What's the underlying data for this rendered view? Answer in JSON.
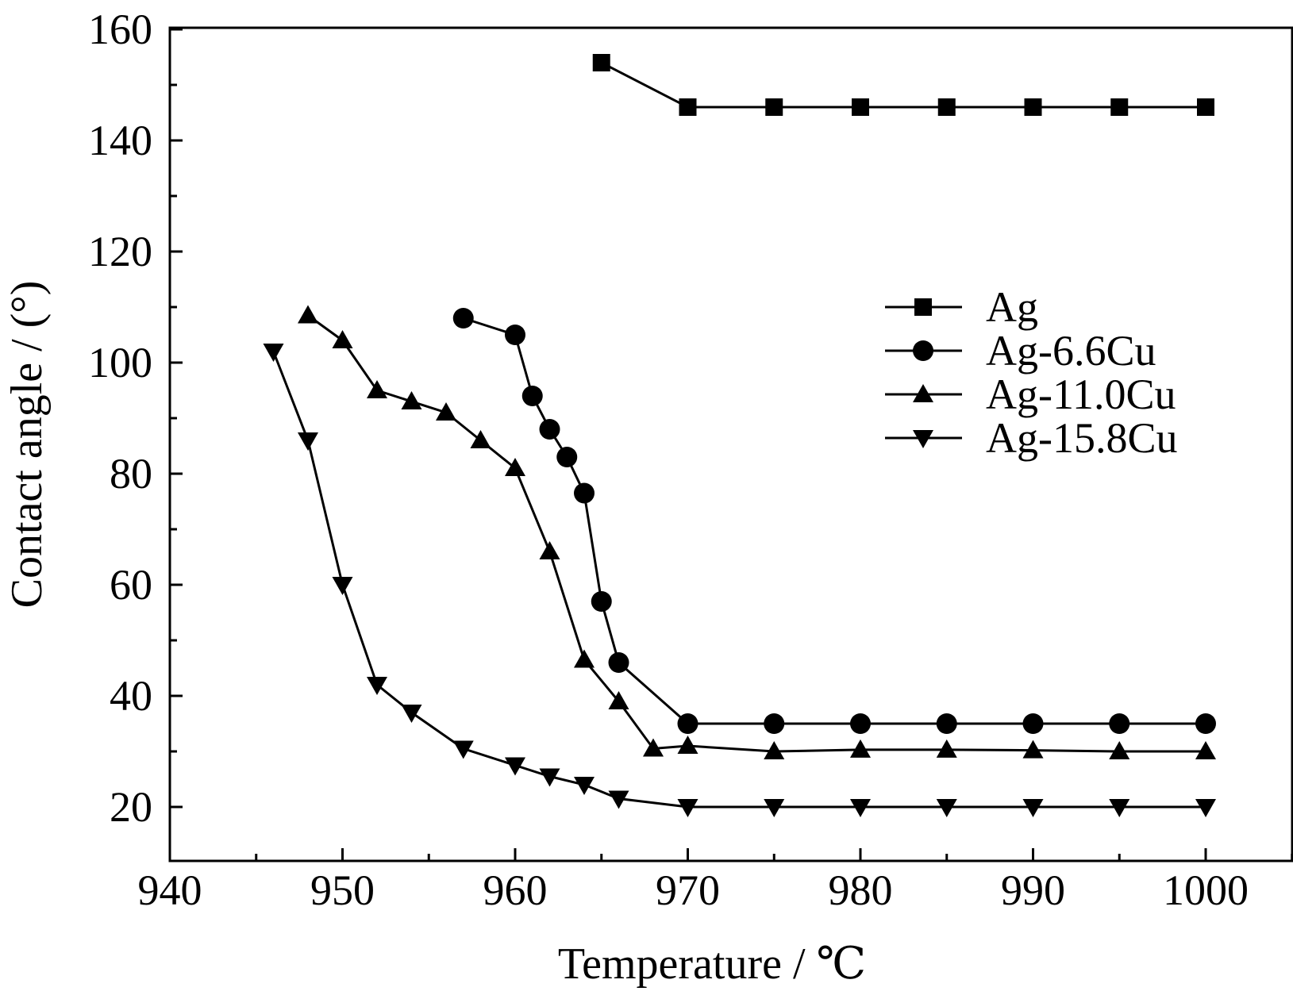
{
  "chart_data": {
    "type": "line",
    "xlabel": "Temperature / ℃",
    "ylabel": "Contact angle / (°)",
    "xlim": [
      940,
      1005
    ],
    "ylim": [
      10,
      160
    ],
    "x_ticks": [
      940,
      950,
      960,
      970,
      980,
      990,
      1000
    ],
    "y_ticks": [
      20,
      40,
      60,
      80,
      100,
      120,
      140,
      160
    ],
    "x_tick_labels": [
      "940",
      "950",
      "960",
      "970",
      "980",
      "990",
      "1000"
    ],
    "y_tick_labels": [
      "20",
      "40",
      "60",
      "80",
      "100",
      "120",
      "140",
      "160"
    ],
    "grid": false,
    "legend_position": "right",
    "series": [
      {
        "name": "Ag",
        "marker": "square",
        "x": [
          965,
          970,
          975,
          980,
          985,
          990,
          995,
          1000
        ],
        "y": [
          154,
          146,
          146,
          146,
          146,
          146,
          146,
          146
        ]
      },
      {
        "name": "Ag-6.6Cu",
        "marker": "circle",
        "x": [
          957,
          960,
          961,
          962,
          963,
          964,
          965,
          966,
          970,
          975,
          980,
          985,
          990,
          995,
          1000
        ],
        "y": [
          108,
          105,
          94,
          88,
          83,
          76.5,
          57,
          46,
          35,
          35,
          35,
          35,
          35,
          35,
          35
        ]
      },
      {
        "name": "Ag-11.0Cu",
        "marker": "triangle-up",
        "x": [
          948,
          950,
          952,
          954,
          956,
          958,
          960,
          962,
          964,
          966,
          968,
          970,
          975,
          980,
          985,
          990,
          995,
          1000
        ],
        "y": [
          108.5,
          104,
          95,
          93,
          91,
          86,
          81,
          66,
          46.5,
          39,
          30.5,
          31,
          30,
          30.3,
          30.3,
          30.2,
          30,
          30
        ]
      },
      {
        "name": "Ag-15.8Cu",
        "marker": "triangle-down",
        "x": [
          946,
          948,
          950,
          952,
          954,
          957,
          960,
          962,
          964,
          966,
          970,
          975,
          980,
          985,
          990,
          995,
          1000
        ],
        "y": [
          102,
          86,
          60,
          42,
          37,
          30.5,
          27.5,
          25.5,
          24,
          21.5,
          20,
          20,
          20,
          20,
          20,
          20,
          20
        ]
      }
    ]
  }
}
